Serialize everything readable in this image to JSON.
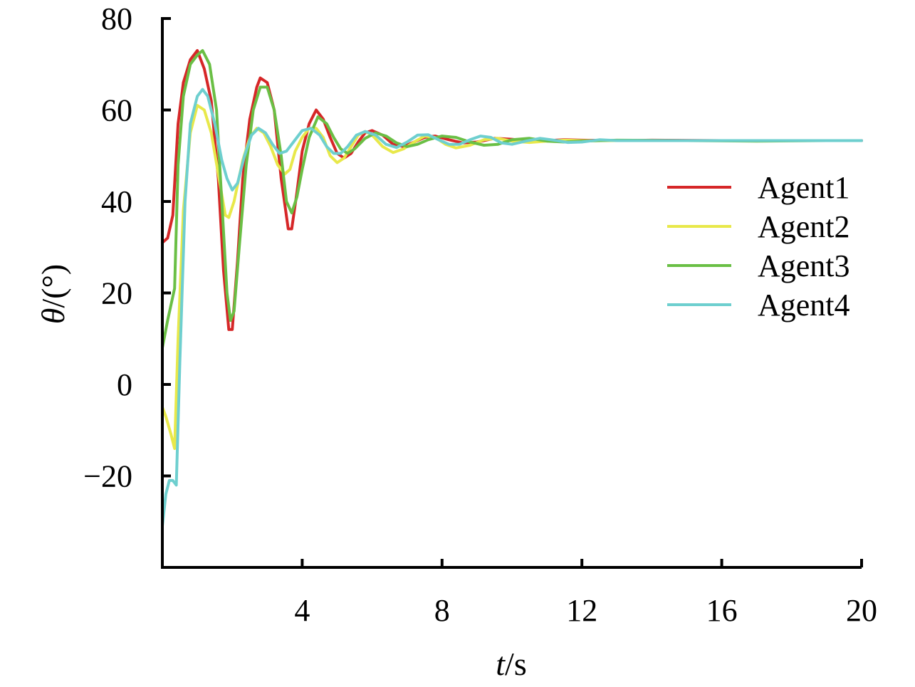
{
  "chart_data": {
    "type": "line",
    "xlabel_var": "t",
    "xlabel_unit": "/s",
    "ylabel_var": "θ",
    "ylabel_unit": "/(°)",
    "xlim": [
      0,
      20
    ],
    "ylim": [
      -40,
      80
    ],
    "xticks": [
      4,
      8,
      12,
      16,
      20
    ],
    "xtick_labels": [
      "4",
      "8",
      "12",
      "16",
      "20"
    ],
    "yticks": [
      -20,
      0,
      20,
      40,
      60,
      80
    ],
    "ytick_labels": [
      "−20",
      "0",
      "20",
      "40",
      "60",
      "80"
    ],
    "grid": false,
    "legend_position": "right",
    "series": [
      {
        "name": "Agent1",
        "color": "#d62728",
        "points": [
          [
            0,
            31
          ],
          [
            0.15,
            32
          ],
          [
            0.3,
            37
          ],
          [
            0.45,
            57
          ],
          [
            0.6,
            66
          ],
          [
            0.8,
            71
          ],
          [
            1.0,
            73
          ],
          [
            1.2,
            69
          ],
          [
            1.4,
            62
          ],
          [
            1.6,
            45
          ],
          [
            1.75,
            25
          ],
          [
            1.9,
            12
          ],
          [
            2.0,
            12
          ],
          [
            2.15,
            27
          ],
          [
            2.3,
            45
          ],
          [
            2.5,
            58
          ],
          [
            2.7,
            65
          ],
          [
            2.8,
            67
          ],
          [
            3.0,
            66
          ],
          [
            3.2,
            60
          ],
          [
            3.4,
            45
          ],
          [
            3.6,
            34
          ],
          [
            3.7,
            34
          ],
          [
            3.85,
            42
          ],
          [
            4.0,
            51
          ],
          [
            4.2,
            57
          ],
          [
            4.4,
            60
          ],
          [
            4.6,
            58
          ],
          [
            4.8,
            54
          ],
          [
            5.0,
            50.5
          ],
          [
            5.2,
            49.5
          ],
          [
            5.4,
            50.5
          ],
          [
            5.6,
            53
          ],
          [
            5.8,
            55
          ],
          [
            6.0,
            55.5
          ],
          [
            6.3,
            54.5
          ],
          [
            6.6,
            52.5
          ],
          [
            6.9,
            52
          ],
          [
            7.2,
            53
          ],
          [
            7.5,
            54
          ],
          [
            7.8,
            54.3
          ],
          [
            8.2,
            53.5
          ],
          [
            8.6,
            52.8
          ],
          [
            9.0,
            53
          ],
          [
            9.5,
            53.8
          ],
          [
            10.0,
            53.6
          ],
          [
            10.5,
            53.2
          ],
          [
            11.0,
            53.3
          ],
          [
            11.5,
            53.5
          ],
          [
            12.0,
            53.4
          ],
          [
            13.0,
            53.3
          ],
          [
            14.0,
            53.4
          ],
          [
            16.0,
            53.3
          ],
          [
            18.0,
            53.3
          ],
          [
            20.0,
            53.3
          ]
        ]
      },
      {
        "name": "Agent2",
        "color": "#e8e84a",
        "points": [
          [
            0,
            -5
          ],
          [
            0.1,
            -7
          ],
          [
            0.25,
            -11
          ],
          [
            0.35,
            -14
          ],
          [
            0.45,
            10
          ],
          [
            0.6,
            38
          ],
          [
            0.8,
            55
          ],
          [
            1.0,
            61
          ],
          [
            1.2,
            60
          ],
          [
            1.4,
            55
          ],
          [
            1.6,
            46
          ],
          [
            1.8,
            37
          ],
          [
            1.9,
            36.5
          ],
          [
            2.05,
            40
          ],
          [
            2.3,
            49
          ],
          [
            2.5,
            54
          ],
          [
            2.7,
            56
          ],
          [
            2.9,
            55
          ],
          [
            3.1,
            52
          ],
          [
            3.3,
            48
          ],
          [
            3.5,
            46
          ],
          [
            3.65,
            47
          ],
          [
            3.8,
            51
          ],
          [
            4.0,
            54
          ],
          [
            4.2,
            56
          ],
          [
            4.4,
            56
          ],
          [
            4.6,
            54
          ],
          [
            4.8,
            50
          ],
          [
            5.0,
            48.5
          ],
          [
            5.2,
            49.5
          ],
          [
            5.4,
            52
          ],
          [
            5.6,
            54.5
          ],
          [
            5.8,
            55.3
          ],
          [
            6.0,
            54.5
          ],
          [
            6.3,
            52
          ],
          [
            6.6,
            50.7
          ],
          [
            6.9,
            51.5
          ],
          [
            7.2,
            53
          ],
          [
            7.5,
            54.3
          ],
          [
            7.8,
            54
          ],
          [
            8.1,
            52.5
          ],
          [
            8.4,
            51.7
          ],
          [
            8.8,
            52.3
          ],
          [
            9.2,
            53.5
          ],
          [
            9.6,
            53.8
          ],
          [
            10.0,
            53.2
          ],
          [
            10.5,
            52.9
          ],
          [
            11.0,
            53.2
          ],
          [
            11.5,
            53.4
          ],
          [
            12.0,
            53.3
          ],
          [
            14.0,
            53.3
          ],
          [
            17.0,
            53.3
          ]
        ]
      },
      {
        "name": "Agent3",
        "color": "#6abf45",
        "points": [
          [
            0,
            8
          ],
          [
            0.15,
            14
          ],
          [
            0.35,
            21
          ],
          [
            0.45,
            48
          ],
          [
            0.6,
            63
          ],
          [
            0.8,
            70
          ],
          [
            1.0,
            72
          ],
          [
            1.15,
            73
          ],
          [
            1.35,
            70
          ],
          [
            1.55,
            60
          ],
          [
            1.7,
            40
          ],
          [
            1.85,
            20
          ],
          [
            1.95,
            14
          ],
          [
            2.05,
            16
          ],
          [
            2.2,
            30
          ],
          [
            2.4,
            48
          ],
          [
            2.6,
            60
          ],
          [
            2.8,
            65
          ],
          [
            3.0,
            65
          ],
          [
            3.2,
            60
          ],
          [
            3.4,
            50
          ],
          [
            3.55,
            40
          ],
          [
            3.7,
            37.5
          ],
          [
            3.85,
            41
          ],
          [
            4.0,
            47
          ],
          [
            4.2,
            54
          ],
          [
            4.45,
            58.5
          ],
          [
            4.7,
            57
          ],
          [
            4.9,
            54
          ],
          [
            5.1,
            51.5
          ],
          [
            5.3,
            50.5
          ],
          [
            5.5,
            51.5
          ],
          [
            5.8,
            53.8
          ],
          [
            6.1,
            55
          ],
          [
            6.4,
            54.3
          ],
          [
            6.7,
            52.8
          ],
          [
            7.0,
            52
          ],
          [
            7.3,
            52.5
          ],
          [
            7.6,
            53.5
          ],
          [
            8.0,
            54.3
          ],
          [
            8.4,
            54
          ],
          [
            8.8,
            53
          ],
          [
            9.2,
            52.3
          ],
          [
            9.6,
            52.5
          ],
          [
            10.0,
            53.5
          ],
          [
            10.5,
            53.8
          ],
          [
            11.0,
            53.2
          ],
          [
            11.5,
            53
          ],
          [
            12.0,
            53.2
          ],
          [
            13.0,
            53.4
          ],
          [
            15.0,
            53.3
          ],
          [
            17.0,
            53.2
          ],
          [
            19.0,
            53.3
          ]
        ]
      },
      {
        "name": "Agent4",
        "color": "#6ecfcf",
        "points": [
          [
            0,
            -31
          ],
          [
            0.1,
            -24
          ],
          [
            0.2,
            -21
          ],
          [
            0.3,
            -21
          ],
          [
            0.4,
            -22
          ],
          [
            0.5,
            5
          ],
          [
            0.65,
            40
          ],
          [
            0.8,
            57
          ],
          [
            1.0,
            63
          ],
          [
            1.15,
            64.5
          ],
          [
            1.3,
            63
          ],
          [
            1.5,
            57
          ],
          [
            1.7,
            49
          ],
          [
            1.85,
            45
          ],
          [
            2.0,
            42.5
          ],
          [
            2.15,
            44
          ],
          [
            2.35,
            50
          ],
          [
            2.55,
            54.5
          ],
          [
            2.75,
            56
          ],
          [
            2.95,
            55
          ],
          [
            3.15,
            52.5
          ],
          [
            3.35,
            50.5
          ],
          [
            3.55,
            51
          ],
          [
            3.75,
            53
          ],
          [
            4.0,
            55.5
          ],
          [
            4.25,
            56
          ],
          [
            4.5,
            54.5
          ],
          [
            4.7,
            52
          ],
          [
            4.9,
            50.5
          ],
          [
            5.1,
            50.5
          ],
          [
            5.3,
            52
          ],
          [
            5.55,
            54.5
          ],
          [
            5.8,
            55.3
          ],
          [
            6.1,
            54.5
          ],
          [
            6.4,
            52.5
          ],
          [
            6.7,
            51.8
          ],
          [
            7.0,
            53
          ],
          [
            7.3,
            54.5
          ],
          [
            7.6,
            54.6
          ],
          [
            7.9,
            53.5
          ],
          [
            8.2,
            52.5
          ],
          [
            8.5,
            52.5
          ],
          [
            8.8,
            53.5
          ],
          [
            9.1,
            54.3
          ],
          [
            9.4,
            54
          ],
          [
            9.7,
            52.8
          ],
          [
            10.0,
            52.5
          ],
          [
            10.4,
            53.2
          ],
          [
            10.8,
            53.8
          ],
          [
            11.2,
            53.4
          ],
          [
            11.6,
            52.9
          ],
          [
            12.0,
            53
          ],
          [
            12.5,
            53.5
          ],
          [
            13.0,
            53.3
          ],
          [
            14.0,
            53.3
          ],
          [
            16.0,
            53.3
          ],
          [
            18.0,
            53.3
          ],
          [
            20.0,
            53.3
          ]
        ]
      }
    ]
  }
}
